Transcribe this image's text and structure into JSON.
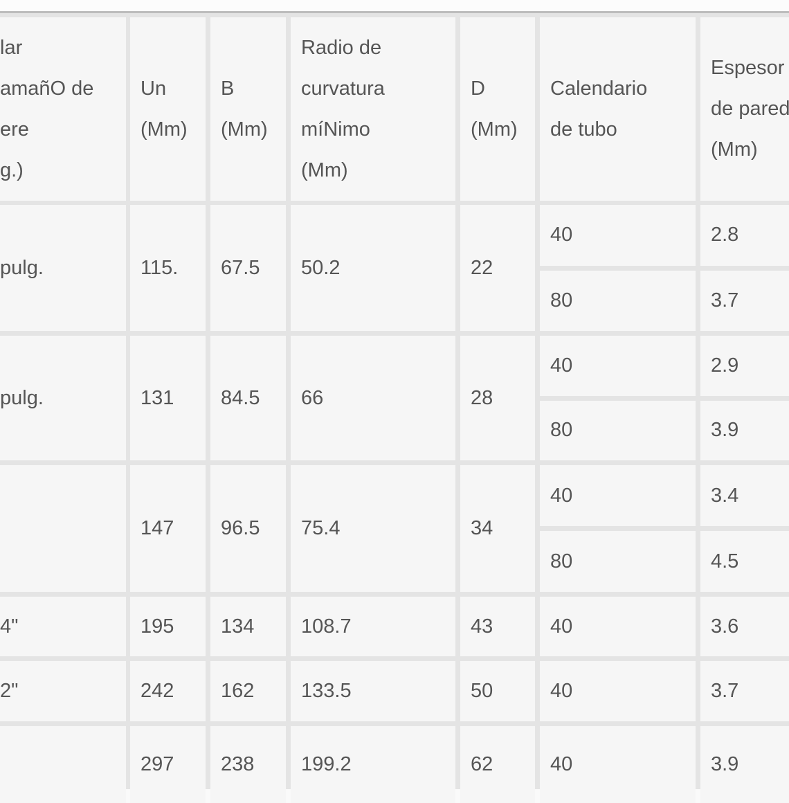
{
  "table": {
    "headers": [
      "lar\namañO de\nere\ng.)",
      "Un\n(Mm)",
      "B\n(Mm)",
      " Radio de\ncurvatura\nmíNimo\n(Mm)",
      "D\n(Mm)",
      " Calendario\nde tubo",
      " Espesor\nde pared\n(Mm)"
    ],
    "rows": [
      {
        "size": "pulg.",
        "a": "115.",
        "b": "67.5",
        "radius": "50.2",
        "d": "22",
        "schedules": [
          "40",
          "80"
        ],
        "walls": [
          "2.8",
          "3.7"
        ]
      },
      {
        "size": "pulg.",
        "a": "131",
        "b": "84.5",
        "radius": "66",
        "d": "28",
        "schedules": [
          "40",
          "80"
        ],
        "walls": [
          "2.9",
          "3.9"
        ]
      },
      {
        "size": "",
        "a": "147",
        "b": "96.5",
        "radius": "75.4",
        "d": "34",
        "schedules": [
          "40",
          "80"
        ],
        "walls": [
          "3.4",
          "4.5"
        ]
      },
      {
        "size": "4\"",
        "a": "195",
        "b": "134",
        "radius": "108.7",
        "d": "43",
        "schedules": [
          "40"
        ],
        "walls": [
          "3.6"
        ]
      },
      {
        "size": "2\"",
        "a": "242",
        "b": "162",
        "radius": "133.5",
        "d": "50",
        "schedules": [
          "40"
        ],
        "walls": [
          "3.7"
        ]
      },
      {
        "size": "",
        "a": "297",
        "b": "238",
        "radius": "199.2",
        "d": "62",
        "schedules": [
          "40"
        ],
        "walls": [
          "3.9"
        ]
      }
    ]
  }
}
